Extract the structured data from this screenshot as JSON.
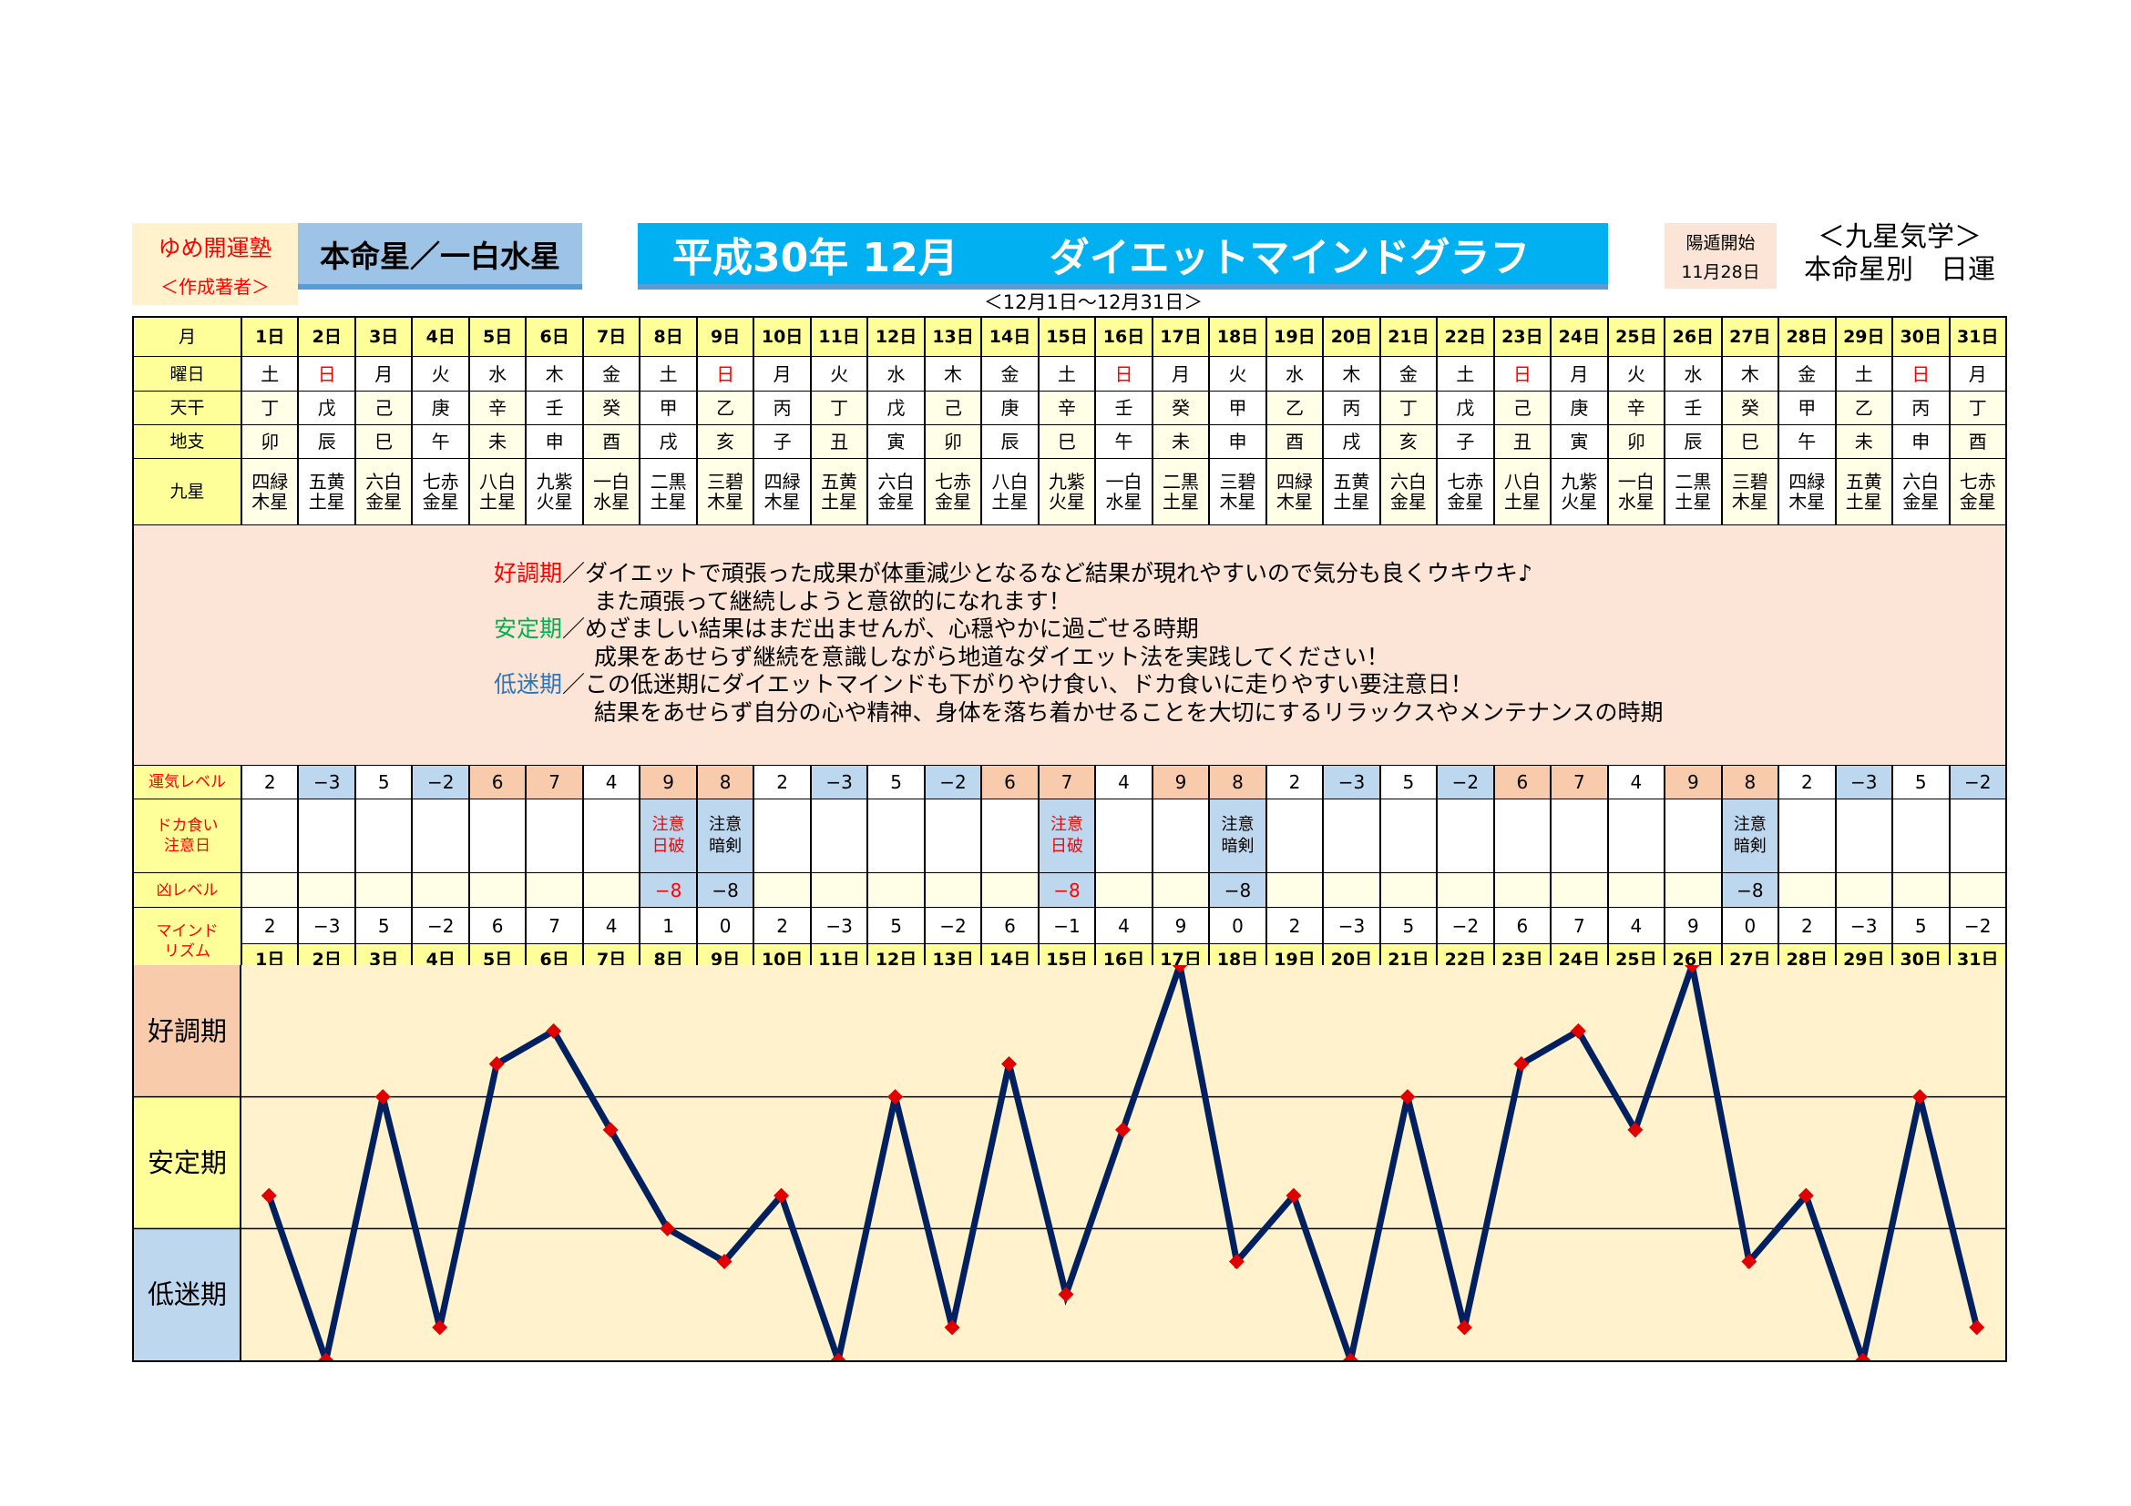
{
  "header": {
    "author": "ゆめ開運塾",
    "author_sub": "＜作成著者＞",
    "honmei": "本命星／一白水星",
    "title_year": "平成30年 12月",
    "title_name": "ダイエットマインドグラフ",
    "start_label": "陽遁開始",
    "start_date": "11月28日",
    "kyusei_title": "＜九星気学＞",
    "kyusei_sub": "本命星別　日運",
    "range": "＜12月1日～12月31日＞"
  },
  "labels": {
    "month": "月",
    "weekday": "曜日",
    "tenkan": "天干",
    "chishi": "地支",
    "kyusei": "九星",
    "unki": "運気レベル",
    "doka": "ドカ食い注意日",
    "kyo": "凶レベル",
    "mind": "マインドリズム"
  },
  "days": [
    "1日",
    "2日",
    "3日",
    "4日",
    "5日",
    "6日",
    "7日",
    "8日",
    "9日",
    "10日",
    "11日",
    "12日",
    "13日",
    "14日",
    "15日",
    "16日",
    "17日",
    "18日",
    "19日",
    "20日",
    "21日",
    "22日",
    "23日",
    "24日",
    "25日",
    "26日",
    "27日",
    "28日",
    "29日",
    "30日",
    "31日"
  ],
  "weekdays": [
    "土",
    "日",
    "月",
    "火",
    "水",
    "木",
    "金",
    "土",
    "日",
    "月",
    "火",
    "水",
    "木",
    "金",
    "土",
    "日",
    "月",
    "火",
    "水",
    "木",
    "金",
    "土",
    "日",
    "月",
    "火",
    "水",
    "木",
    "金",
    "土",
    "日",
    "月"
  ],
  "tenkan": [
    "丁",
    "戊",
    "己",
    "庚",
    "辛",
    "壬",
    "癸",
    "甲",
    "乙",
    "丙",
    "丁",
    "戊",
    "己",
    "庚",
    "辛",
    "壬",
    "癸",
    "甲",
    "乙",
    "丙",
    "丁",
    "戊",
    "己",
    "庚",
    "辛",
    "壬",
    "癸",
    "甲",
    "乙",
    "丙",
    "丁"
  ],
  "chishi": [
    "卯",
    "辰",
    "巳",
    "午",
    "未",
    "申",
    "酉",
    "戌",
    "亥",
    "子",
    "丑",
    "寅",
    "卯",
    "辰",
    "巳",
    "午",
    "未",
    "申",
    "酉",
    "戌",
    "亥",
    "子",
    "丑",
    "寅",
    "卯",
    "辰",
    "巳",
    "午",
    "未",
    "申",
    "酉"
  ],
  "kyusei": [
    "四緑木星",
    "五黄土星",
    "六白金星",
    "七赤金星",
    "八白土星",
    "九紫火星",
    "一白水星",
    "二黒土星",
    "三碧木星",
    "四緑木星",
    "五黄土星",
    "六白金星",
    "七赤金星",
    "八白土星",
    "九紫火星",
    "一白水星",
    "二黒土星",
    "三碧木星",
    "四緑木星",
    "五黄土星",
    "六白金星",
    "七赤金星",
    "八白土星",
    "九紫火星",
    "一白水星",
    "二黒土星",
    "三碧木星",
    "四緑木星",
    "五黄土星",
    "六白金星",
    "七赤金星"
  ],
  "unki": [
    2,
    -3,
    5,
    -2,
    6,
    7,
    4,
    9,
    8,
    2,
    -3,
    5,
    -2,
    6,
    7,
    4,
    9,
    8,
    2,
    -3,
    5,
    -2,
    6,
    7,
    4,
    9,
    8,
    2,
    -3,
    5,
    -2
  ],
  "doka": {
    "8": {
      "text": "注意日破",
      "red": true
    },
    "9": {
      "text": "注意暗剣",
      "red": false
    },
    "15": {
      "text": "注意日破",
      "red": true
    },
    "18": {
      "text": "注意暗剣",
      "red": false
    },
    "27": {
      "text": "注意暗剣",
      "red": false
    }
  },
  "kyo": {
    "8": "-8",
    "9": "-8",
    "15": "-8",
    "18": "-8",
    "27": "-8"
  },
  "description": [
    {
      "head": "好調期",
      "color": "#ff0000",
      "lines": [
        "／ダイエットで頑張った成果が体重減少となるなど結果が現れやすいので気分も良くウキウキ♪",
        "また頑張って継続しようと意欲的になれます！"
      ]
    },
    {
      "head": "安定期",
      "color": "#00b050",
      "lines": [
        "／めざましい結果はまだ出ませんが、心穏やかに過ごせる時期",
        "成果をあせらず継続を意識しながら地道なダイエット法を実践してください！"
      ]
    },
    {
      "head": "低迷期",
      "color": "#2e75b6",
      "lines": [
        "／この低迷期にダイエットマインドも下がりやけ食い、ドカ食いに走りやすい要注意日！",
        "結果をあせらず自分の心や精神、身体を落ち着かせることを大切にするリラックスやメンテナンスの時期"
      ]
    }
  ],
  "chart_data": {
    "type": "line",
    "categories": [
      "1日",
      "2日",
      "3日",
      "4日",
      "5日",
      "6日",
      "7日",
      "8日",
      "9日",
      "10日",
      "11日",
      "12日",
      "13日",
      "14日",
      "15日",
      "16日",
      "17日",
      "18日",
      "19日",
      "20日",
      "21日",
      "22日",
      "23日",
      "24日",
      "25日",
      "26日",
      "27日",
      "28日",
      "29日",
      "30日",
      "31日"
    ],
    "series": [
      {
        "name": "マインドリズム",
        "values": [
          2,
          -3,
          5,
          -2,
          6,
          7,
          4,
          1,
          0,
          2,
          -3,
          5,
          -2,
          6,
          -1,
          4,
          9,
          0,
          2,
          -3,
          5,
          -2,
          6,
          7,
          4,
          9,
          0,
          2,
          -3,
          5,
          -2
        ]
      }
    ],
    "ylim": [
      -3,
      9
    ],
    "bands": [
      {
        "label": "好調期",
        "from": 5,
        "to": 9,
        "color": "#f8cbad"
      },
      {
        "label": "安定期",
        "from": 1,
        "to": 5,
        "color": "#ffff99"
      },
      {
        "label": "低迷期",
        "from": -3,
        "to": 1,
        "color": "#bdd7ee"
      }
    ],
    "line_color": "#002060",
    "marker_color": "#e00000"
  }
}
